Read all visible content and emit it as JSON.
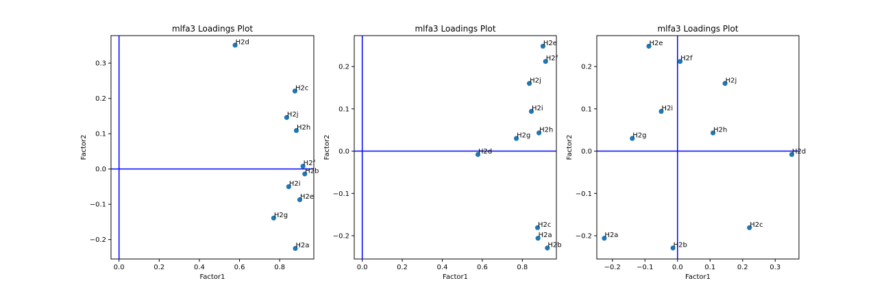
{
  "chart_data": [
    {
      "type": "scatter",
      "title": "mlfa3 Loadings Plot",
      "xlabel": "Factor1",
      "ylabel": "Factor2",
      "xlim": [
        -0.04,
        0.97
      ],
      "ylim": [
        -0.255,
        0.378
      ],
      "xticks": [
        "0.0",
        "0.2",
        "0.4",
        "0.6",
        "0.8"
      ],
      "xtick_values": [
        0.0,
        0.2,
        0.4,
        0.6,
        0.8
      ],
      "yticks": [
        "−0.2",
        "−0.1",
        "0.0",
        "0.1",
        "0.2",
        "0.3"
      ],
      "ytick_values": [
        -0.2,
        -0.1,
        0.0,
        0.1,
        0.2,
        0.3
      ],
      "reference_lines": {
        "x": 0,
        "y": 0,
        "color": "#0000ff"
      },
      "marker_color": "#1f77b4",
      "points": [
        {
          "label": "H2d",
          "x": 0.578,
          "y": 0.351
        },
        {
          "label": "H2c",
          "x": 0.876,
          "y": 0.221
        },
        {
          "label": "H2j",
          "x": 0.835,
          "y": 0.146
        },
        {
          "label": "H2h",
          "x": 0.883,
          "y": 0.109
        },
        {
          "label": "H2f",
          "x": 0.916,
          "y": 0.008
        },
        {
          "label": "H2b",
          "x": 0.925,
          "y": -0.014
        },
        {
          "label": "H2i",
          "x": 0.845,
          "y": -0.05
        },
        {
          "label": "H2e",
          "x": 0.9,
          "y": -0.087
        },
        {
          "label": "H2g",
          "x": 0.77,
          "y": -0.139
        },
        {
          "label": "H2a",
          "x": 0.878,
          "y": -0.225
        }
      ]
    },
    {
      "type": "scatter",
      "title": "mlfa3 Loadings Plot",
      "xlabel": "Factor1",
      "ylabel": "Factor2",
      "xlim": [
        -0.04,
        0.97
      ],
      "ylim": [
        -0.255,
        0.273
      ],
      "xticks": [
        "0.0",
        "0.2",
        "0.4",
        "0.6",
        "0.8"
      ],
      "xtick_values": [
        0.0,
        0.2,
        0.4,
        0.6,
        0.8
      ],
      "yticks": [
        "−0.2",
        "−0.1",
        "0.0",
        "0.1",
        "0.2"
      ],
      "ytick_values": [
        -0.2,
        -0.1,
        0.0,
        0.1,
        0.2
      ],
      "reference_lines": {
        "x": 0,
        "y": 0,
        "color": "#0000ff"
      },
      "marker_color": "#1f77b4",
      "points": [
        {
          "label": "H2e",
          "x": 0.903,
          "y": 0.248
        },
        {
          "label": "H2f",
          "x": 0.916,
          "y": 0.212
        },
        {
          "label": "H2j",
          "x": 0.835,
          "y": 0.16
        },
        {
          "label": "H2i",
          "x": 0.845,
          "y": 0.094
        },
        {
          "label": "H2h",
          "x": 0.883,
          "y": 0.043
        },
        {
          "label": "H2g",
          "x": 0.77,
          "y": 0.03
        },
        {
          "label": "H2d",
          "x": 0.578,
          "y": -0.008
        },
        {
          "label": "H2c",
          "x": 0.876,
          "y": -0.181
        },
        {
          "label": "H2a",
          "x": 0.878,
          "y": -0.206
        },
        {
          "label": "H2b",
          "x": 0.925,
          "y": -0.229
        }
      ]
    },
    {
      "type": "scatter",
      "title": "mlfa3 Loadings Plot",
      "xlabel": "Factor1",
      "ylabel": "Factor2",
      "xlim": [
        -0.248,
        0.373
      ],
      "ylim": [
        -0.255,
        0.273
      ],
      "xticks": [
        "−0.2",
        "−0.1",
        "0.0",
        "0.1",
        "0.2",
        "0.3"
      ],
      "xtick_values": [
        -0.2,
        -0.1,
        0.0,
        0.1,
        0.2,
        0.3
      ],
      "yticks": [
        "−0.2",
        "−0.1",
        "0.0",
        "0.1",
        "0.2"
      ],
      "ytick_values": [
        -0.2,
        -0.1,
        0.0,
        0.1,
        0.2
      ],
      "reference_lines": {
        "x": 0,
        "y": 0,
        "color": "#0000ff"
      },
      "marker_color": "#1f77b4",
      "points": [
        {
          "label": "H2e",
          "x": -0.088,
          "y": 0.248
        },
        {
          "label": "H2f",
          "x": 0.008,
          "y": 0.212
        },
        {
          "label": "H2j",
          "x": 0.146,
          "y": 0.16
        },
        {
          "label": "H2i",
          "x": -0.05,
          "y": 0.094
        },
        {
          "label": "H2h",
          "x": 0.109,
          "y": 0.043
        },
        {
          "label": "H2g",
          "x": -0.139,
          "y": 0.03
        },
        {
          "label": "H2d",
          "x": 0.351,
          "y": -0.008
        },
        {
          "label": "H2c",
          "x": 0.221,
          "y": -0.181
        },
        {
          "label": "H2a",
          "x": -0.225,
          "y": -0.206
        },
        {
          "label": "H2b",
          "x": -0.014,
          "y": -0.229
        }
      ]
    }
  ]
}
